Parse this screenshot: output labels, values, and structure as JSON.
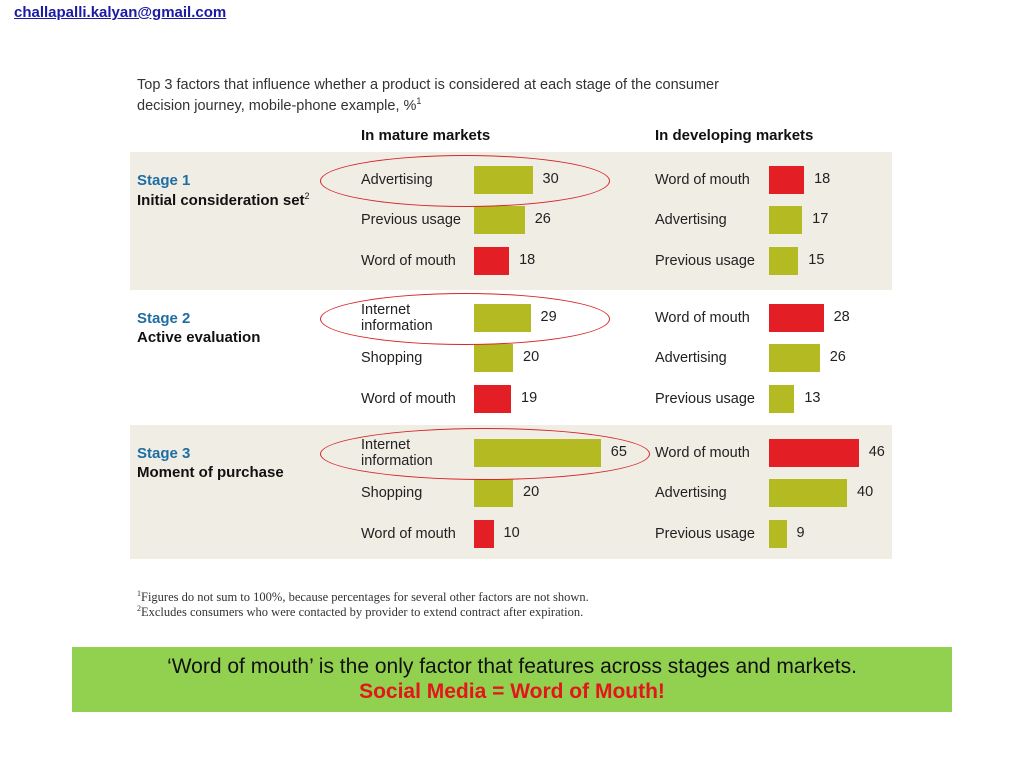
{
  "header": {
    "email": "challapalli.kalyan@gmail.com"
  },
  "chart_data": {
    "type": "bar",
    "title": "Top 3 factors that influence whether a product is considered at each stage of the consumer decision journey, mobile-phone example, %",
    "title_sup": "1",
    "columns": [
      "In mature markets",
      "In developing markets"
    ],
    "colors": {
      "highlight": "#e31e24",
      "normal": "#b4bb22",
      "band": "#efede4",
      "stage": "#1f6ea3"
    },
    "stages": [
      {
        "stage": "Stage 1",
        "name": "Initial consideration set",
        "name_sup": "2",
        "mature": [
          {
            "label": "Advertising",
            "value": 30,
            "highlight": false
          },
          {
            "label": "Previous usage",
            "value": 26,
            "highlight": false
          },
          {
            "label": "Word of mouth",
            "value": 18,
            "highlight": true
          }
        ],
        "developing": [
          {
            "label": "Word of mouth",
            "value": 18,
            "highlight": true
          },
          {
            "label": "Advertising",
            "value": 17,
            "highlight": false
          },
          {
            "label": "Previous usage",
            "value": 15,
            "highlight": false
          }
        ]
      },
      {
        "stage": "Stage 2",
        "name": "Active evaluation",
        "name_sup": "",
        "mature": [
          {
            "label": "Internet information",
            "value": 29,
            "highlight": false
          },
          {
            "label": "Shopping",
            "value": 20,
            "highlight": false
          },
          {
            "label": "Word of mouth",
            "value": 19,
            "highlight": true
          }
        ],
        "developing": [
          {
            "label": "Word of mouth",
            "value": 28,
            "highlight": true
          },
          {
            "label": "Advertising",
            "value": 26,
            "highlight": false
          },
          {
            "label": "Previous usage",
            "value": 13,
            "highlight": false
          }
        ]
      },
      {
        "stage": "Stage 3",
        "name": "Moment of purchase",
        "name_sup": "",
        "mature": [
          {
            "label": "Internet information",
            "value": 65,
            "highlight": false
          },
          {
            "label": "Shopping",
            "value": 20,
            "highlight": false
          },
          {
            "label": "Word of mouth",
            "value": 10,
            "highlight": true
          }
        ],
        "developing": [
          {
            "label": "Word of mouth",
            "value": 46,
            "highlight": true
          },
          {
            "label": "Advertising",
            "value": 40,
            "highlight": false
          },
          {
            "label": "Previous usage",
            "value": 9,
            "highlight": false
          }
        ]
      }
    ],
    "footnotes": [
      {
        "sup": "1",
        "text": "Figures do not sum to 100%, because percentages for several other factors are not shown."
      },
      {
        "sup": "2",
        "text": "Excludes consumers who were contacted by provider to extend contract after expiration."
      }
    ]
  },
  "callout": {
    "line1": "‘Word of mouth’ is the only factor that features across stages and markets.",
    "line2": "Social Media = Word of Mouth!"
  }
}
